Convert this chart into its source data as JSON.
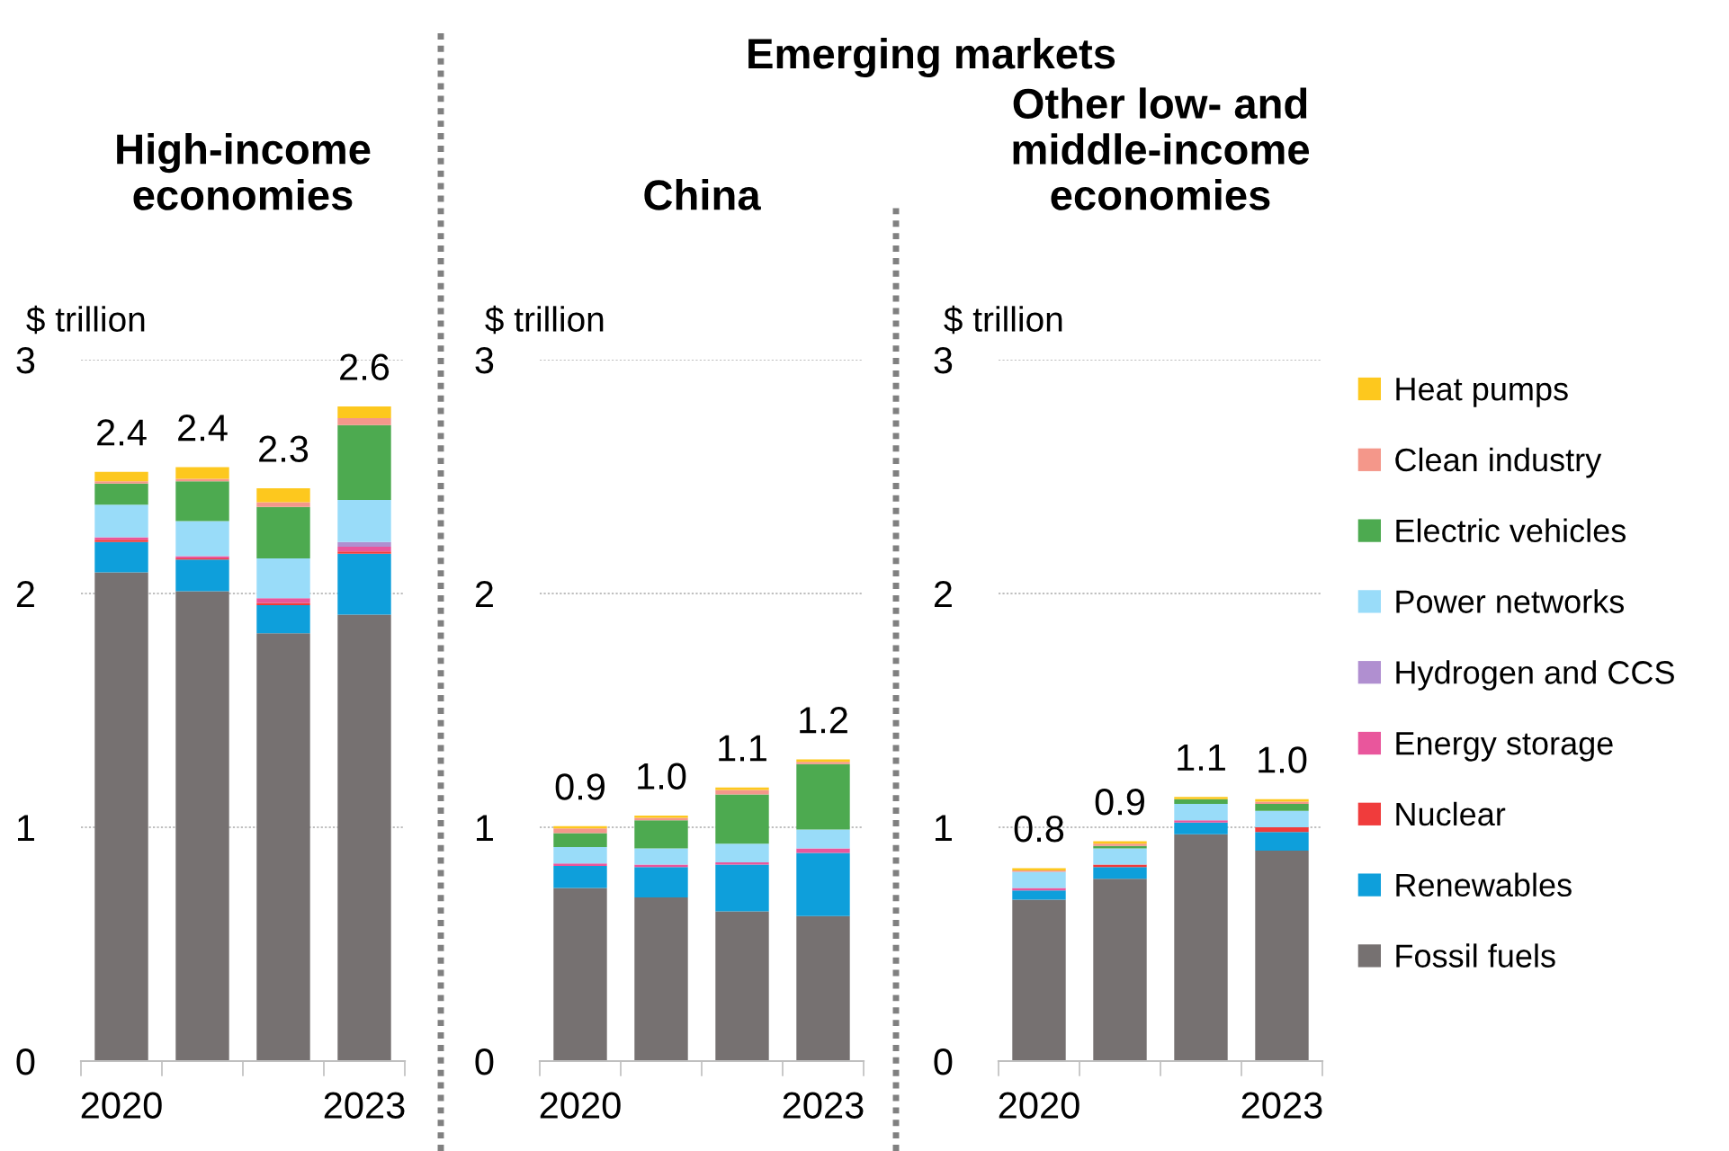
{
  "chart_data": [
    {
      "type": "bar",
      "stacked": true,
      "title": "High-income economies",
      "ylabel": "$ trillion",
      "categories": [
        "2020",
        null,
        null,
        "2023"
      ],
      "ylim": [
        0,
        3
      ],
      "yticks": [
        0,
        1,
        2,
        3
      ],
      "grid": "y",
      "totals": [
        "2.4",
        "2.4",
        "2.3",
        "2.6"
      ],
      "series": [
        {
          "color": "#767171",
          "values": [
            2.09,
            2.01,
            1.83,
            1.91
          ]
        },
        {
          "color": "#0e9fdb",
          "values": [
            0.13,
            0.135,
            0.12,
            0.26
          ]
        },
        {
          "color": "#f03c3c",
          "values": [
            0.01,
            0.005,
            0.01,
            0.01
          ]
        },
        {
          "color": "#e9569c",
          "values": [
            0.01,
            0.01,
            0.02,
            0.02
          ]
        },
        {
          "color": "#b08fd0",
          "values": [
            0,
            0,
            0,
            0.02
          ]
        },
        {
          "color": "#99dcf9",
          "values": [
            0.14,
            0.15,
            0.17,
            0.18
          ]
        },
        {
          "color": "#4daa50",
          "values": [
            0.09,
            0.17,
            0.22,
            0.32
          ]
        },
        {
          "color": "#f4978a",
          "values": [
            0.01,
            0.01,
            0.02,
            0.03
          ]
        },
        {
          "color": "#fdc81e",
          "values": [
            0.04,
            0.05,
            0.06,
            0.05
          ]
        }
      ]
    },
    {
      "type": "bar",
      "stacked": true,
      "title": "China",
      "ylabel": "$ trillion",
      "annotations": [
        "Emerging markets"
      ],
      "categories": [
        "2020",
        null,
        null,
        "2023"
      ],
      "ylim": [
        0,
        3
      ],
      "yticks": [
        0,
        1,
        2,
        3
      ],
      "grid": "y",
      "totals": [
        "0.9",
        "1.0",
        "1.1",
        "1.2"
      ],
      "series": [
        {
          "color": "#767171",
          "values": [
            0.74,
            0.7,
            0.64,
            0.62
          ]
        },
        {
          "color": "#0e9fdb",
          "values": [
            0.095,
            0.13,
            0.2,
            0.27
          ]
        },
        {
          "color": "#f03c3c",
          "values": [
            0,
            0,
            0,
            0
          ]
        },
        {
          "color": "#e9569c",
          "values": [
            0.01,
            0.01,
            0.01,
            0.02
          ]
        },
        {
          "color": "#b08fd0",
          "values": [
            0,
            0,
            0,
            0
          ]
        },
        {
          "color": "#99dcf9",
          "values": [
            0.07,
            0.07,
            0.08,
            0.08
          ]
        },
        {
          "color": "#4daa50",
          "values": [
            0.06,
            0.12,
            0.21,
            0.28
          ]
        },
        {
          "color": "#f4978a",
          "values": [
            0.02,
            0.01,
            0.02,
            0.01
          ]
        },
        {
          "color": "#fdc81e",
          "values": [
            0.01,
            0.01,
            0.01,
            0.01
          ]
        }
      ]
    },
    {
      "type": "bar",
      "stacked": true,
      "title": "Other low- and middle-income economies",
      "ylabel": "$ trillion",
      "categories": [
        "2020",
        null,
        null,
        "2023"
      ],
      "ylim": [
        0,
        3
      ],
      "yticks": [
        0,
        1,
        2,
        3
      ],
      "grid": "y",
      "legend": "right",
      "totals": [
        "0.8",
        "0.9",
        "1.1",
        "1.0"
      ],
      "series": [
        {
          "name": "Fossil fuels",
          "color": "#767171",
          "values": [
            0.69,
            0.78,
            0.97,
            0.9
          ]
        },
        {
          "name": "Renewables",
          "color": "#0e9fdb",
          "values": [
            0.04,
            0.05,
            0.05,
            0.08
          ]
        },
        {
          "name": "Nuclear",
          "color": "#f03c3c",
          "values": [
            0,
            0.01,
            0,
            0.02
          ]
        },
        {
          "name": "Energy storage",
          "color": "#e9569c",
          "values": [
            0.01,
            0,
            0.01,
            0
          ]
        },
        {
          "name": "Hydrogen and CCS",
          "color": "#b08fd0",
          "values": [
            0,
            0,
            0,
            0
          ]
        },
        {
          "name": "Power networks",
          "color": "#99dcf9",
          "values": [
            0.07,
            0.07,
            0.07,
            0.07
          ]
        },
        {
          "name": "Electric vehicles",
          "color": "#4daa50",
          "values": [
            0,
            0.01,
            0.02,
            0.03
          ]
        },
        {
          "name": "Clean industry",
          "color": "#f4978a",
          "values": [
            0.005,
            0.01,
            0,
            0.01
          ]
        },
        {
          "name": "Heat pumps",
          "color": "#fdc81e",
          "values": [
            0.01,
            0.01,
            0.01,
            0.01
          ]
        }
      ]
    }
  ]
}
